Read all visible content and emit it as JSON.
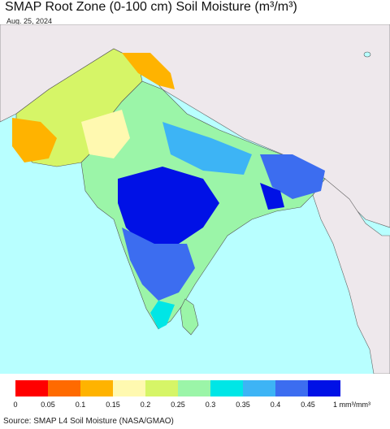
{
  "title": "SMAP Root Zone (0-100 cm) Soil Moisture (m³/m³)",
  "date": "Aug. 25, 2024",
  "source": "Source: SMAP L4 Soil Moisture (NASA/GMAO)",
  "legend": {
    "colors": [
      "#ff0000",
      "#ff6a00",
      "#ffb300",
      "#fff9b0",
      "#d6f567",
      "#9bf5a8",
      "#00e6e6",
      "#3db4f5",
      "#3c6df0",
      "#0011e6"
    ],
    "ticks": [
      "0",
      "0.05",
      "0.1",
      "0.15",
      "0.2",
      "0.25",
      "0.3",
      "0.35",
      "0.4",
      "0.45",
      "1 mm³/mm³"
    ]
  },
  "map_colors": {
    "ocean": "#b8ffff",
    "land_outside": "#eee8ec",
    "border": "#555555"
  }
}
